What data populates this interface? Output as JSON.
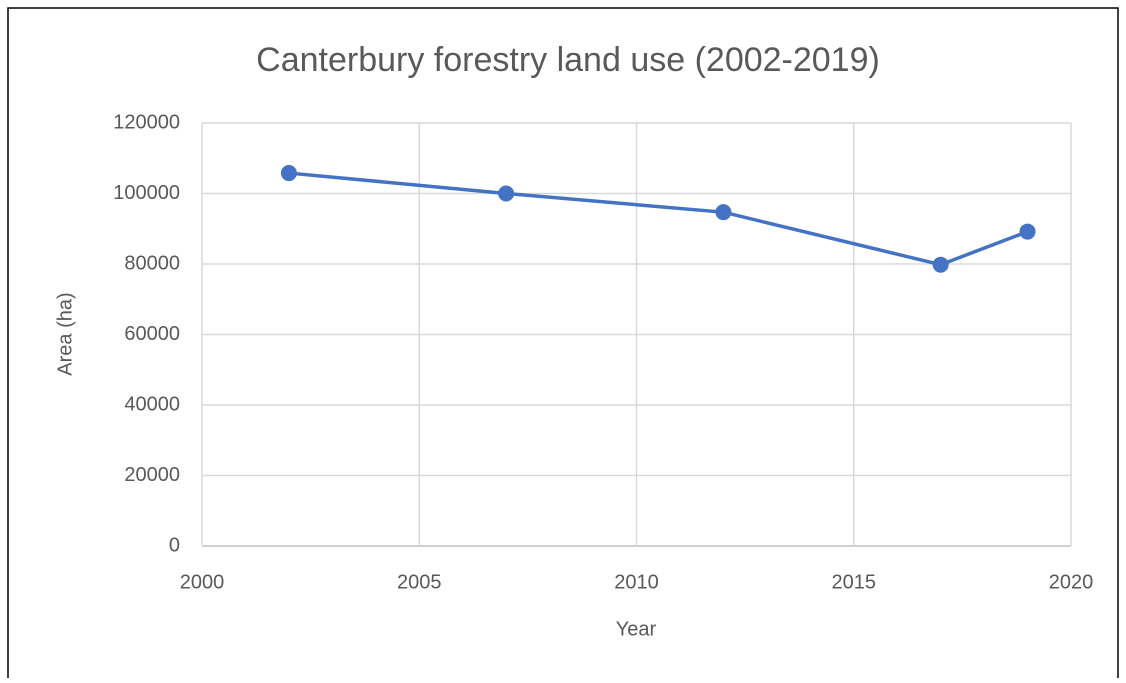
{
  "chart_data": {
    "type": "line",
    "title": "Canterbury forestry land use (2002-2019)",
    "x_label": "Year",
    "y_label": "Area (ha)",
    "x": [
      2002,
      2007,
      2012,
      2017,
      2019
    ],
    "values": [
      105800,
      100000,
      94700,
      79800,
      89200
    ],
    "color": "#4472c4",
    "xlim": [
      2000,
      2020
    ],
    "xticks": [
      2000,
      2005,
      2010,
      2015,
      2020
    ],
    "ylim": [
      0,
      120000
    ],
    "yticks": [
      0,
      20000,
      40000,
      60000,
      80000,
      100000,
      120000
    ],
    "grid": true
  }
}
